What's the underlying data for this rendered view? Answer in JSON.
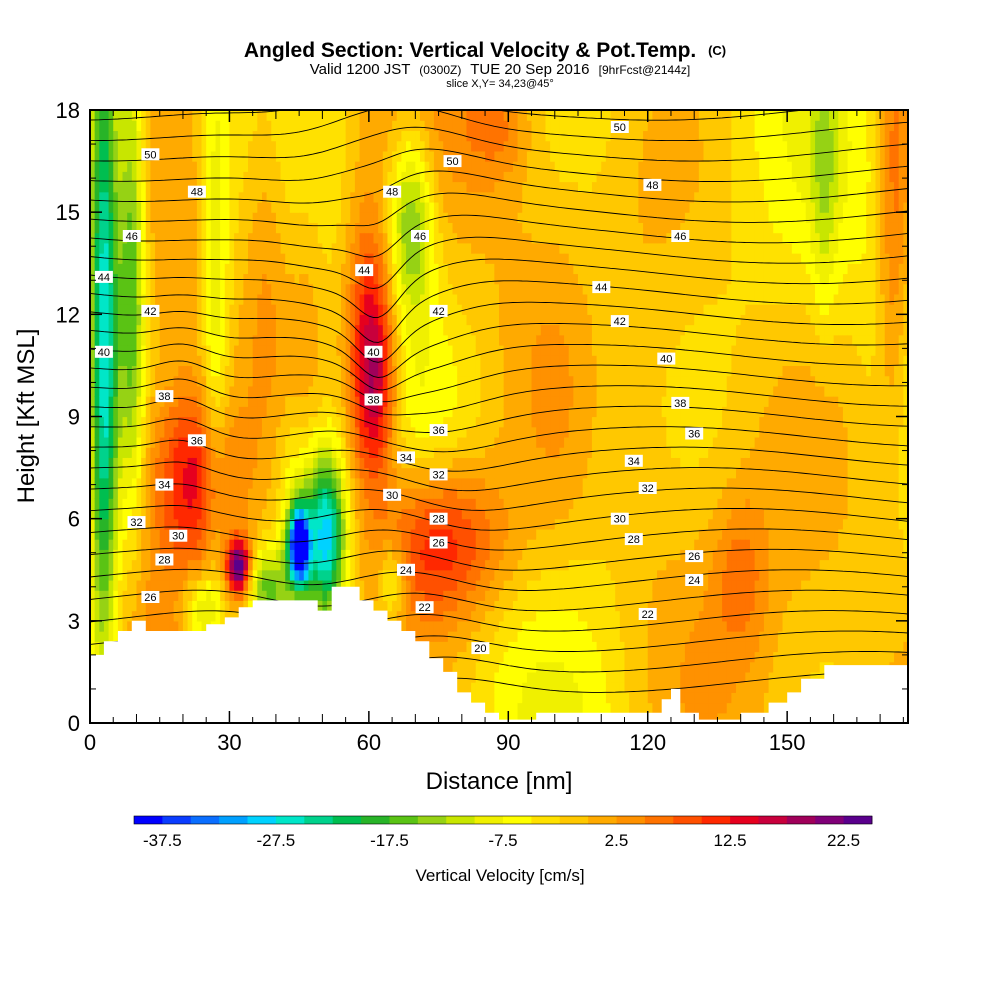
{
  "header": {
    "title": "Angled Section: Vertical Velocity & Pot.Temp.",
    "title_suffix": "(C)",
    "valid_prefix": "Valid 1200 JST",
    "valid_utc": "(0300Z)",
    "valid_date": "TUE 20 Sep 2016",
    "forecast": "[9hrFcst@2144z]",
    "slice": "slice X,Y= 34,23@45°"
  },
  "chart_data": {
    "type": "heatmap",
    "xlabel": "Distance [nm]",
    "ylabel": "Height [Kft MSL]",
    "xlim": [
      0,
      176
    ],
    "ylim": [
      0,
      18
    ],
    "xticks": [
      0,
      30,
      60,
      90,
      120,
      150
    ],
    "yticks": [
      0,
      3,
      6,
      9,
      12,
      15,
      18
    ],
    "colorbar": {
      "label": "Vertical Velocity [cm/s]",
      "tick_labels": [
        "-37.5",
        "-27.5",
        "-17.5",
        "-7.5",
        "2.5",
        "12.5",
        "22.5"
      ],
      "tick_values": [
        -37.5,
        -27.5,
        -17.5,
        -7.5,
        2.5,
        12.5,
        22.5
      ],
      "range": [
        -40,
        25
      ],
      "step": 2.5,
      "colors": [
        "#0000ff",
        "#0a3cff",
        "#0a6eff",
        "#00a0ff",
        "#00d2ff",
        "#00e6c8",
        "#00d28c",
        "#00be50",
        "#28b428",
        "#5ac314",
        "#96d214",
        "#c8e600",
        "#f0f000",
        "#ffff00",
        "#ffe100",
        "#ffc800",
        "#ffaa00",
        "#ff9100",
        "#ff7300",
        "#ff5000",
        "#ff2800",
        "#e6001e",
        "#c8003c",
        "#a0005a",
        "#800078",
        "#5a008c"
      ]
    },
    "terrain": [
      [
        0,
        2.0
      ],
      [
        3,
        2.0
      ],
      [
        3,
        2.4
      ],
      [
        6,
        2.4
      ],
      [
        6,
        2.7
      ],
      [
        9,
        2.7
      ],
      [
        9,
        3.0
      ],
      [
        12,
        3.0
      ],
      [
        12,
        2.7
      ],
      [
        25,
        2.7
      ],
      [
        25,
        2.9
      ],
      [
        29,
        2.9
      ],
      [
        29,
        3.1
      ],
      [
        32,
        3.1
      ],
      [
        32,
        3.4
      ],
      [
        35,
        3.4
      ],
      [
        35,
        3.6
      ],
      [
        49,
        3.6
      ],
      [
        49,
        3.3
      ],
      [
        52,
        3.3
      ],
      [
        52,
        4.0
      ],
      [
        58,
        4.0
      ],
      [
        58,
        3.6
      ],
      [
        61,
        3.6
      ],
      [
        61,
        3.3
      ],
      [
        64,
        3.3
      ],
      [
        64,
        3.0
      ],
      [
        67,
        3.0
      ],
      [
        67,
        2.7
      ],
      [
        70,
        2.7
      ],
      [
        70,
        2.4
      ],
      [
        73,
        2.4
      ],
      [
        73,
        1.9
      ],
      [
        76,
        1.9
      ],
      [
        76,
        1.5
      ],
      [
        79,
        1.5
      ],
      [
        79,
        0.9
      ],
      [
        82,
        0.9
      ],
      [
        82,
        0.6
      ],
      [
        85,
        0.6
      ],
      [
        85,
        0.3
      ],
      [
        88,
        0.3
      ],
      [
        88,
        0.1
      ],
      [
        96,
        0.1
      ],
      [
        96,
        0.3
      ],
      [
        123,
        0.3
      ],
      [
        123,
        0.7
      ],
      [
        125,
        0.7
      ],
      [
        125,
        1.0
      ],
      [
        127,
        1.0
      ],
      [
        127,
        0.3
      ],
      [
        131,
        0.3
      ],
      [
        131,
        0.1
      ],
      [
        140,
        0.1
      ],
      [
        140,
        0.3
      ],
      [
        146,
        0.3
      ],
      [
        146,
        0.6
      ],
      [
        150,
        0.6
      ],
      [
        150,
        0.9
      ],
      [
        153,
        0.9
      ],
      [
        153,
        1.3
      ],
      [
        158,
        1.3
      ],
      [
        158,
        1.7
      ],
      [
        176,
        1.7
      ]
    ],
    "updrafts": [
      {
        "x": 75,
        "y": 5.3,
        "sx": 10,
        "sy": 1.8,
        "amp": 17
      },
      {
        "x": 61,
        "y": 9.8,
        "sx": 3.5,
        "sy": 2.2,
        "amp": 19
      },
      {
        "x": 60,
        "y": 12.5,
        "sx": 4,
        "sy": 2.5,
        "amp": 9
      },
      {
        "x": 22,
        "y": 7.2,
        "sx": 6,
        "sy": 1.8,
        "amp": 13
      },
      {
        "x": 32,
        "y": 4.6,
        "sx": 1.8,
        "sy": 0.55,
        "amp": 25
      },
      {
        "x": 38,
        "y": 14.5,
        "sx": 4,
        "sy": 4,
        "amp": 7
      },
      {
        "x": 20,
        "y": 12,
        "sx": 8,
        "sy": 5,
        "amp": 5
      },
      {
        "x": 47,
        "y": 9,
        "sx": 3,
        "sy": 6,
        "amp": 5
      },
      {
        "x": 88,
        "y": 17.5,
        "sx": 5,
        "sy": 1.2,
        "amp": 6
      },
      {
        "x": 173,
        "y": 15,
        "sx": 2.5,
        "sy": 5,
        "amp": 9
      },
      {
        "x": 140,
        "y": 4.3,
        "sx": 4,
        "sy": 1.6,
        "amp": 6
      }
    ],
    "downdrafts": [
      {
        "x": 3,
        "y": 11,
        "sx": 2.2,
        "sy": 7,
        "amp": -27
      },
      {
        "x": 9,
        "y": 13,
        "sx": 2,
        "sy": 5,
        "amp": -16
      },
      {
        "x": 45,
        "y": 5.2,
        "sx": 1.6,
        "sy": 0.8,
        "amp": -40
      },
      {
        "x": 51,
        "y": 5.5,
        "sx": 2.8,
        "sy": 1.6,
        "amp": -24
      },
      {
        "x": 46,
        "y": 6,
        "sx": 4,
        "sy": 2.5,
        "amp": -12
      },
      {
        "x": 69,
        "y": 14.8,
        "sx": 3.5,
        "sy": 2,
        "amp": -15
      },
      {
        "x": 38,
        "y": 4.0,
        "sx": 3,
        "sy": 0.8,
        "amp": -14
      },
      {
        "x": 24,
        "y": 3.3,
        "sx": 3,
        "sy": 0.8,
        "amp": -12
      },
      {
        "x": 27,
        "y": 12,
        "sx": 2,
        "sy": 6,
        "amp": -8
      },
      {
        "x": 65,
        "y": 4.2,
        "sx": 2,
        "sy": 0.8,
        "amp": -9
      },
      {
        "x": 158,
        "y": 16,
        "sx": 2,
        "sy": 3,
        "amp": -6
      },
      {
        "x": 110,
        "y": 10,
        "sx": 5,
        "sy": 4,
        "amp": -3
      }
    ],
    "contour_levels": [
      20,
      21,
      22,
      23,
      24,
      25,
      26,
      27,
      28,
      29,
      30,
      31,
      32,
      33,
      34,
      35,
      36,
      37,
      38,
      39,
      40,
      41,
      42,
      43,
      44,
      45,
      46,
      47,
      48,
      49,
      50,
      51
    ],
    "contour_labels": [
      {
        "text": "50",
        "x": 13,
        "y": 16.7
      },
      {
        "text": "50",
        "x": 78,
        "y": 16.5
      },
      {
        "text": "50",
        "x": 114,
        "y": 17.5
      },
      {
        "text": "48",
        "x": 23,
        "y": 15.6
      },
      {
        "text": "48",
        "x": 65,
        "y": 15.6
      },
      {
        "text": "48",
        "x": 121,
        "y": 15.8
      },
      {
        "text": "46",
        "x": 9,
        "y": 14.3
      },
      {
        "text": "46",
        "x": 71,
        "y": 14.3
      },
      {
        "text": "46",
        "x": 127,
        "y": 14.3
      },
      {
        "text": "44",
        "x": 3,
        "y": 13.1
      },
      {
        "text": "44",
        "x": 59,
        "y": 13.3
      },
      {
        "text": "44",
        "x": 110,
        "y": 12.8
      },
      {
        "text": "42",
        "x": 13,
        "y": 12.1
      },
      {
        "text": "42",
        "x": 75,
        "y": 12.1
      },
      {
        "text": "42",
        "x": 114,
        "y": 11.8
      },
      {
        "text": "40",
        "x": 3,
        "y": 10.9
      },
      {
        "text": "40",
        "x": 61,
        "y": 10.9
      },
      {
        "text": "40",
        "x": 124,
        "y": 10.7
      },
      {
        "text": "38",
        "x": 16,
        "y": 9.6
      },
      {
        "text": "38",
        "x": 61,
        "y": 9.5
      },
      {
        "text": "38",
        "x": 127,
        "y": 9.4
      },
      {
        "text": "36",
        "x": 23,
        "y": 8.3
      },
      {
        "text": "36",
        "x": 75,
        "y": 8.6
      },
      {
        "text": "36",
        "x": 130,
        "y": 8.5
      },
      {
        "text": "34",
        "x": 16,
        "y": 7.0
      },
      {
        "text": "34",
        "x": 68,
        "y": 7.8
      },
      {
        "text": "34",
        "x": 117,
        "y": 7.7
      },
      {
        "text": "32",
        "x": 10,
        "y": 5.9
      },
      {
        "text": "32",
        "x": 75,
        "y": 7.3
      },
      {
        "text": "32",
        "x": 120,
        "y": 6.9
      },
      {
        "text": "30",
        "x": 19,
        "y": 5.5
      },
      {
        "text": "30",
        "x": 65,
        "y": 6.7
      },
      {
        "text": "30",
        "x": 114,
        "y": 6.0
      },
      {
        "text": "28",
        "x": 16,
        "y": 4.8
      },
      {
        "text": "28",
        "x": 75,
        "y": 6.0
      },
      {
        "text": "28",
        "x": 117,
        "y": 5.4
      },
      {
        "text": "26",
        "x": 13,
        "y": 3.7
      },
      {
        "text": "26",
        "x": 75,
        "y": 5.3
      },
      {
        "text": "26",
        "x": 130,
        "y": 4.9
      },
      {
        "text": "24",
        "x": 68,
        "y": 4.5
      },
      {
        "text": "24",
        "x": 130,
        "y": 4.2
      },
      {
        "text": "22",
        "x": 72,
        "y": 3.4
      },
      {
        "text": "22",
        "x": 120,
        "y": 3.2
      },
      {
        "text": "20",
        "x": 84,
        "y": 2.2
      }
    ]
  }
}
